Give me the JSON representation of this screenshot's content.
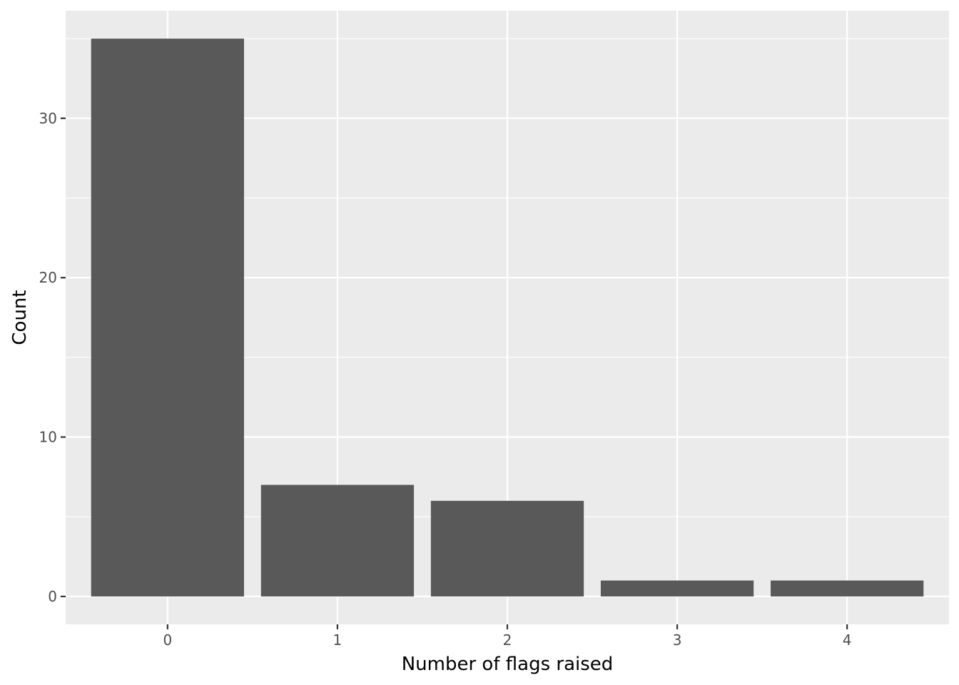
{
  "chart_data": {
    "type": "bar",
    "categories": [
      "0",
      "1",
      "2",
      "3",
      "4"
    ],
    "values": [
      35,
      7,
      6,
      1,
      1
    ],
    "title": "",
    "xlabel": "Number of flags raised",
    "ylabel": "Count",
    "ylim": [
      -1.75,
      36.75
    ],
    "yticks": [
      0,
      10,
      20,
      30
    ],
    "yminor": [
      5,
      15,
      25,
      35
    ],
    "grid": true,
    "colors": {
      "panel": "#ebebeb",
      "grid": "#ffffff",
      "bar": "#595959",
      "tick": "#333333",
      "tick_text": "#4d4d4d"
    }
  }
}
